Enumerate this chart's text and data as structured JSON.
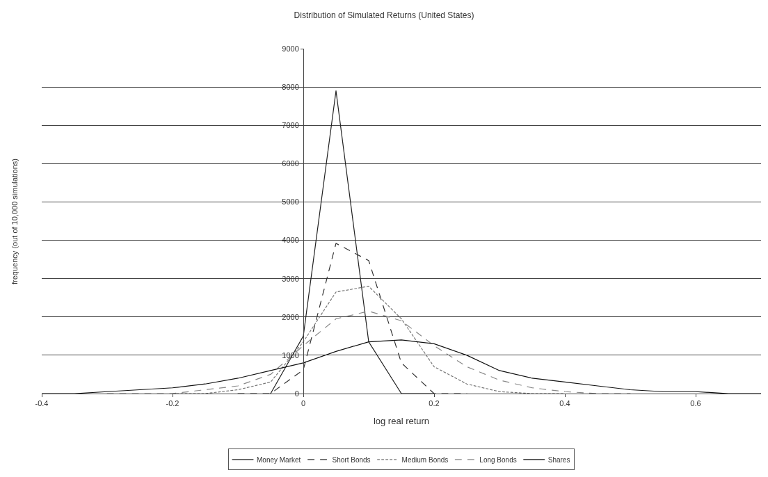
{
  "chart_data": {
    "type": "line",
    "title": "Distribution of Simulated Returns (United States)",
    "xlabel": "log real return",
    "ylabel": "frequency (out of 10,000 simulations)",
    "xlim": [
      -0.4,
      0.7
    ],
    "xticks": [
      -0.4,
      -0.2,
      0,
      0.2,
      0.4,
      0.6
    ],
    "ylim": [
      0,
      9000
    ],
    "yticks": [
      0,
      1000,
      2000,
      3000,
      4000,
      5000,
      6000,
      7000,
      8000,
      9000
    ],
    "grid": "y",
    "legend": "bottom",
    "marker": "none",
    "series": [
      {
        "name": "Money Market",
        "color": "#222222",
        "line_style": "solid",
        "x": [
          -0.05,
          0,
          0.05,
          0.1,
          0.15,
          0.2
        ],
        "values": [
          0,
          1500,
          7900,
          1350,
          0,
          0
        ]
      },
      {
        "name": "Short Bonds",
        "color": "#333333",
        "line_style": "dashed",
        "x": [
          -0.1,
          -0.05,
          0,
          0.05,
          0.1,
          0.15,
          0.2,
          0.25
        ],
        "values": [
          0,
          0,
          620,
          3920,
          3470,
          800,
          0,
          0
        ]
      },
      {
        "name": "Medium Bonds",
        "color": "#777777",
        "line_style": "dotted",
        "x": [
          -0.2,
          -0.15,
          -0.1,
          -0.05,
          0,
          0.05,
          0.1,
          0.15,
          0.2,
          0.25,
          0.3,
          0.35,
          0.4
        ],
        "values": [
          0,
          0,
          100,
          300,
          1350,
          2650,
          2800,
          1950,
          700,
          250,
          50,
          0,
          0
        ]
      },
      {
        "name": "Long Bonds",
        "color": "#888888",
        "line_style": "dashed",
        "x": [
          -0.3,
          -0.25,
          -0.2,
          -0.15,
          -0.1,
          -0.05,
          0,
          0.05,
          0.1,
          0.15,
          0.2,
          0.25,
          0.3,
          0.35,
          0.4,
          0.45,
          0.5
        ],
        "values": [
          0,
          0,
          0,
          100,
          200,
          500,
          1250,
          1950,
          2150,
          1900,
          1250,
          700,
          350,
          150,
          50,
          0,
          0
        ]
      },
      {
        "name": "Shares",
        "color": "#111111",
        "line_style": "solid",
        "x": [
          -0.4,
          -0.35,
          -0.3,
          -0.25,
          -0.2,
          -0.15,
          -0.1,
          -0.05,
          0,
          0.05,
          0.1,
          0.15,
          0.2,
          0.25,
          0.3,
          0.35,
          0.4,
          0.45,
          0.5,
          0.55,
          0.6,
          0.65,
          0.7
        ],
        "values": [
          0,
          0,
          50,
          100,
          150,
          250,
          400,
          600,
          800,
          1100,
          1350,
          1400,
          1300,
          1000,
          600,
          400,
          300,
          200,
          100,
          50,
          50,
          0,
          0
        ]
      }
    ]
  }
}
